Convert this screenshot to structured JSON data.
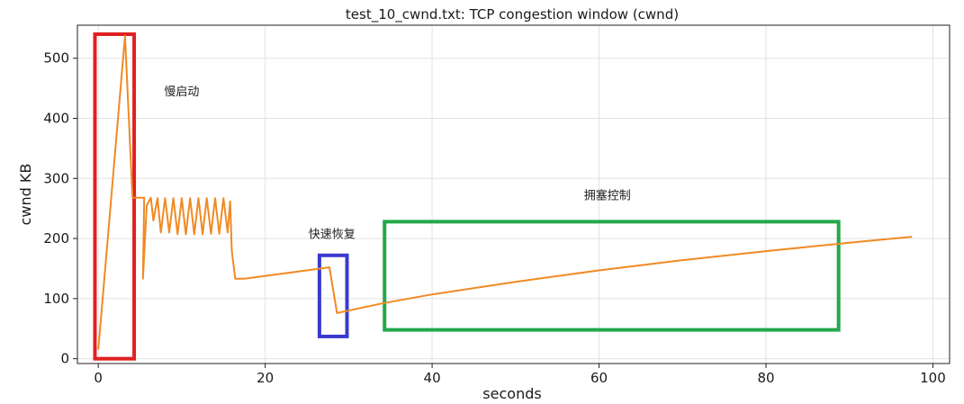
{
  "chart_data": {
    "type": "line",
    "title": "test_10_cwnd.txt: TCP congestion window (cwnd)",
    "xlabel": "seconds",
    "ylabel": "cwnd KB",
    "xlim": [
      -2.5,
      102
    ],
    "ylim": [
      -8,
      555
    ],
    "x_ticks": [
      0,
      20,
      40,
      60,
      80,
      100
    ],
    "y_ticks": [
      0,
      100,
      200,
      300,
      400,
      500
    ],
    "grid": true,
    "legend": "none",
    "line_color": "#f08a24",
    "series": [
      {
        "values": [
          [
            0.0,
            15
          ],
          [
            3.2,
            537
          ],
          [
            4.1,
            268
          ],
          [
            5.5,
            268
          ],
          [
            5.35,
            133
          ],
          [
            5.8,
            255
          ],
          [
            6.3,
            268
          ],
          [
            6.6,
            230
          ],
          [
            7.1,
            267
          ],
          [
            7.5,
            210
          ],
          [
            8.0,
            267
          ],
          [
            8.5,
            210
          ],
          [
            9.0,
            267
          ],
          [
            9.5,
            207
          ],
          [
            10.0,
            267
          ],
          [
            10.5,
            207
          ],
          [
            11.0,
            267
          ],
          [
            11.5,
            207
          ],
          [
            12.0,
            267
          ],
          [
            12.5,
            207
          ],
          [
            13.0,
            267
          ],
          [
            13.5,
            208
          ],
          [
            14.0,
            267
          ],
          [
            14.5,
            208
          ],
          [
            15.0,
            267
          ],
          [
            15.5,
            210
          ],
          [
            15.8,
            262
          ],
          [
            16.0,
            180
          ],
          [
            16.4,
            133
          ],
          [
            17.5,
            133
          ],
          [
            27.7,
            152
          ],
          [
            28.6,
            76
          ],
          [
            34.0,
            92
          ],
          [
            40.0,
            107
          ],
          [
            50.0,
            128
          ],
          [
            60.0,
            147
          ],
          [
            70.0,
            164
          ],
          [
            80.0,
            179
          ],
          [
            90.0,
            193
          ],
          [
            97.5,
            203
          ]
        ]
      }
    ],
    "annotations": [
      {
        "text": "慢启动",
        "x": 10,
        "y": 438,
        "box_color": "#e02020",
        "box_x": [
          -0.4,
          4.3
        ],
        "box_y": [
          0,
          540
        ]
      },
      {
        "text": "快速恢复",
        "x": 28,
        "y": 201,
        "box_color": "#3a3ad0",
        "box_x": [
          26.5,
          29.8
        ],
        "box_y": [
          37,
          172
        ]
      },
      {
        "text": "拥塞控制",
        "x": 61,
        "y": 265,
        "box_color": "#22a84a",
        "box_x": [
          34.3,
          88.7
        ],
        "box_y": [
          48,
          228
        ]
      }
    ]
  }
}
